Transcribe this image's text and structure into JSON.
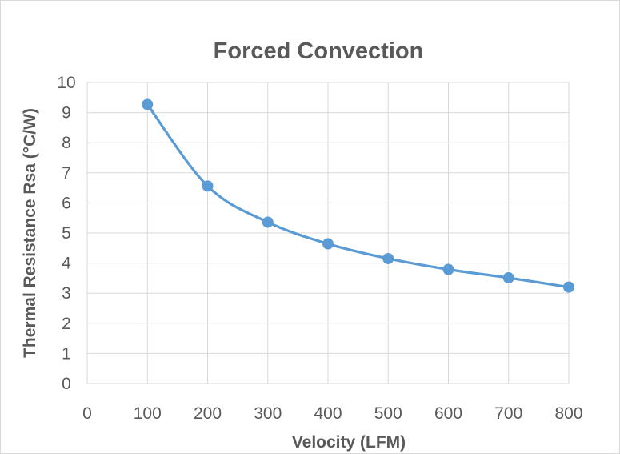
{
  "chart_data": {
    "type": "scatter",
    "title": "Forced Convection",
    "xlabel": "Velocity (LFM)",
    "ylabel": "Thermal Resistance Rsa (°C/W)",
    "xlim": [
      0,
      800
    ],
    "ylim": [
      0,
      10
    ],
    "xticks": [
      0,
      100,
      200,
      300,
      400,
      500,
      600,
      700,
      800
    ],
    "yticks": [
      0,
      1,
      2,
      3,
      4,
      5,
      6,
      7,
      8,
      9,
      10
    ],
    "grid": true,
    "smooth_line": true,
    "series_color": "#5b9bd5",
    "series": [
      {
        "x": [
          100,
          200,
          300,
          400,
          500,
          600,
          700,
          800
        ],
        "y": [
          9.27,
          6.56,
          5.36,
          4.64,
          4.15,
          3.79,
          3.51,
          3.2
        ]
      }
    ]
  }
}
